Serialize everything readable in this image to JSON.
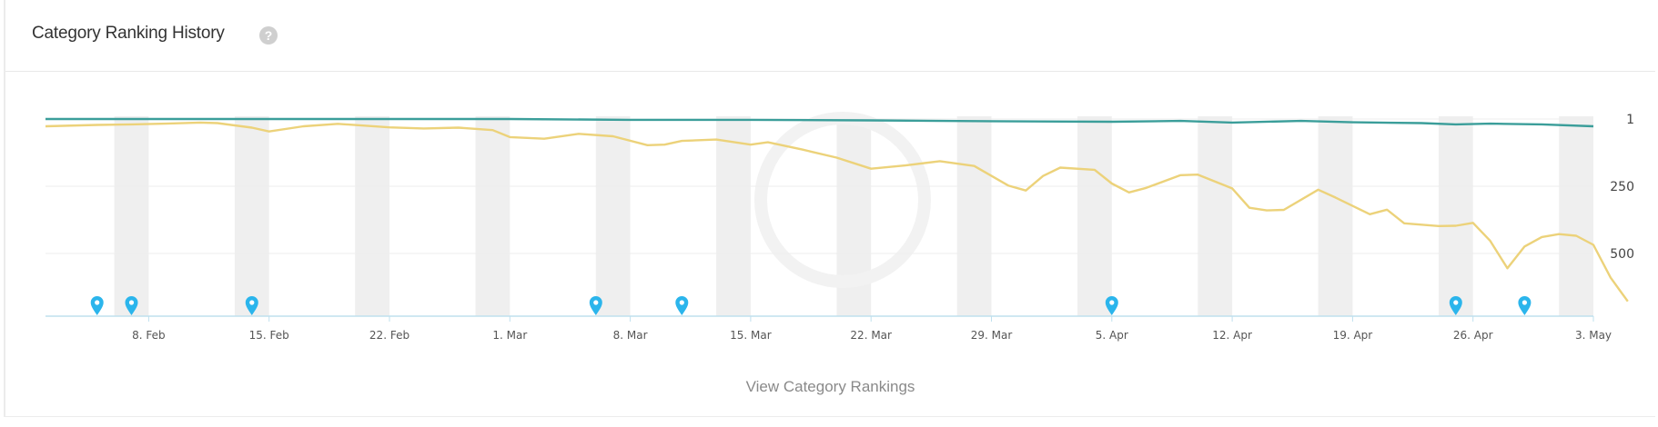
{
  "panel": {
    "title": "Category Ranking History",
    "help_icon": "question-circle-icon",
    "footer_link": "View Category Rankings"
  },
  "colors": {
    "series_top": "#3b9e9a",
    "series_bottom": "#ecd27a",
    "weekend_band": "#efefef",
    "marker": "#2bb5ec",
    "axis": "#bfe0ee",
    "grid": "#ededed"
  },
  "chart_data": {
    "type": "line",
    "x_type": "date",
    "x_range": [
      "2021-02-02",
      "2021-05-03"
    ],
    "x_ticks": [
      {
        "date": "2021-02-08",
        "label": "8. Feb"
      },
      {
        "date": "2021-02-15",
        "label": "15. Feb"
      },
      {
        "date": "2021-02-22",
        "label": "22. Feb"
      },
      {
        "date": "2021-03-01",
        "label": "1. Mar"
      },
      {
        "date": "2021-03-08",
        "label": "8. Mar"
      },
      {
        "date": "2021-03-15",
        "label": "15. Mar"
      },
      {
        "date": "2021-03-22",
        "label": "22. Mar"
      },
      {
        "date": "2021-03-29",
        "label": "29. Mar"
      },
      {
        "date": "2021-04-05",
        "label": "5. Apr"
      },
      {
        "date": "2021-04-12",
        "label": "12. Apr"
      },
      {
        "date": "2021-04-19",
        "label": "19. Apr"
      },
      {
        "date": "2021-04-26",
        "label": "26. Apr"
      },
      {
        "date": "2021-05-03",
        "label": "3. May"
      }
    ],
    "y_ticks": [
      1,
      250,
      500
    ],
    "y_reversed": true,
    "y_range": [
      1,
      720
    ],
    "y_axis_side": "right",
    "grid": "horizontal",
    "weekend_bands": [
      [
        "2021-02-06",
        "2021-02-07"
      ],
      [
        "2021-02-13",
        "2021-02-14"
      ],
      [
        "2021-02-20",
        "2021-02-21"
      ],
      [
        "2021-02-27",
        "2021-02-28"
      ],
      [
        "2021-03-06",
        "2021-03-07"
      ],
      [
        "2021-03-13",
        "2021-03-14"
      ],
      [
        "2021-03-20",
        "2021-03-21"
      ],
      [
        "2021-03-27",
        "2021-03-28"
      ],
      [
        "2021-04-03",
        "2021-04-04"
      ],
      [
        "2021-04-10",
        "2021-04-11"
      ],
      [
        "2021-04-17",
        "2021-04-18"
      ],
      [
        "2021-04-24",
        "2021-04-25"
      ],
      [
        "2021-05-01",
        "2021-05-02"
      ]
    ],
    "markers": [
      "2021-02-05",
      "2021-02-07",
      "2021-02-14",
      "2021-03-06",
      "2021-03-11",
      "2021-04-05",
      "2021-04-25",
      "2021-04-29"
    ],
    "series": [
      {
        "color": "#3b9e9a",
        "points": [
          [
            "2021-02-02",
            1
          ],
          [
            "2021-02-12",
            1
          ],
          [
            "2021-02-22",
            1
          ],
          [
            "2021-03-01",
            1
          ],
          [
            "2021-03-08",
            4
          ],
          [
            "2021-03-15",
            4
          ],
          [
            "2021-03-22",
            6
          ],
          [
            "2021-03-29",
            9
          ],
          [
            "2021-04-05",
            11
          ],
          [
            "2021-04-09",
            8
          ],
          [
            "2021-04-12",
            14
          ],
          [
            "2021-04-16",
            8
          ],
          [
            "2021-04-19",
            13
          ],
          [
            "2021-04-23",
            16
          ],
          [
            "2021-04-25",
            21
          ],
          [
            "2021-04-27",
            18
          ],
          [
            "2021-04-30",
            21
          ],
          [
            "2021-05-03",
            28
          ]
        ]
      },
      {
        "color": "#ecd27a",
        "points": [
          [
            "2021-02-02",
            28
          ],
          [
            "2021-02-05",
            23
          ],
          [
            "2021-02-07",
            21
          ],
          [
            "2021-02-09",
            18
          ],
          [
            "2021-02-11",
            14
          ],
          [
            "2021-02-12",
            16
          ],
          [
            "2021-02-14",
            33
          ],
          [
            "2021-02-15",
            47
          ],
          [
            "2021-02-17",
            28
          ],
          [
            "2021-02-19",
            19
          ],
          [
            "2021-02-22",
            32
          ],
          [
            "2021-02-24",
            36
          ],
          [
            "2021-02-26",
            33
          ],
          [
            "2021-02-28",
            42
          ],
          [
            "2021-03-01",
            68
          ],
          [
            "2021-03-03",
            74
          ],
          [
            "2021-03-05",
            56
          ],
          [
            "2021-03-07",
            65
          ],
          [
            "2021-03-09",
            98
          ],
          [
            "2021-03-10",
            96
          ],
          [
            "2021-03-11",
            82
          ],
          [
            "2021-03-13",
            77
          ],
          [
            "2021-03-15",
            96
          ],
          [
            "2021-03-16",
            87
          ],
          [
            "2021-03-18",
            114
          ],
          [
            "2021-03-20",
            144
          ],
          [
            "2021-03-22",
            185
          ],
          [
            "2021-03-24",
            173
          ],
          [
            "2021-03-26",
            157
          ],
          [
            "2021-03-28",
            175
          ],
          [
            "2021-03-30",
            248
          ],
          [
            "2021-03-31",
            266
          ],
          [
            "2021-04-01",
            212
          ],
          [
            "2021-04-02",
            181
          ],
          [
            "2021-04-04",
            189
          ],
          [
            "2021-04-05",
            240
          ],
          [
            "2021-04-06",
            273
          ],
          [
            "2021-04-07",
            256
          ],
          [
            "2021-04-09",
            209
          ],
          [
            "2021-04-10",
            207
          ],
          [
            "2021-04-12",
            258
          ],
          [
            "2021-04-13",
            330
          ],
          [
            "2021-04-14",
            340
          ],
          [
            "2021-04-15",
            338
          ],
          [
            "2021-04-17",
            263
          ],
          [
            "2021-04-18",
            292
          ],
          [
            "2021-04-20",
            354
          ],
          [
            "2021-04-21",
            337
          ],
          [
            "2021-04-22",
            388
          ],
          [
            "2021-04-24",
            398
          ],
          [
            "2021-04-25",
            397
          ],
          [
            "2021-04-26",
            386
          ],
          [
            "2021-04-27",
            453
          ],
          [
            "2021-04-28",
            555
          ],
          [
            "2021-04-29",
            474
          ],
          [
            "2021-04-30",
            439
          ],
          [
            "2021-05-01",
            428
          ],
          [
            "2021-05-02",
            434
          ],
          [
            "2021-05-03",
            468
          ],
          [
            "2021-05-04",
            590
          ],
          [
            "2021-05-05",
            678
          ]
        ]
      }
    ]
  }
}
